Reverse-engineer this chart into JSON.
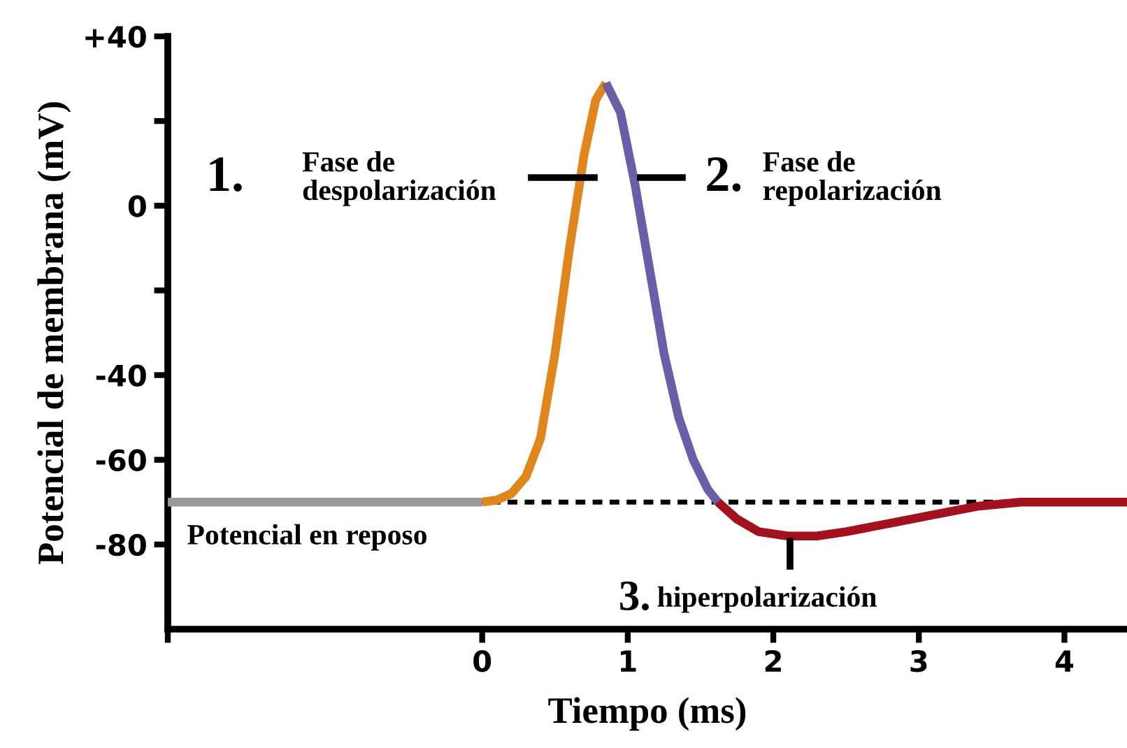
{
  "chart_data": {
    "type": "line",
    "xlabel": "Tiempo (ms)",
    "ylabel": "Potencial de membrana (mV)",
    "xlim": [
      -2.16,
      4.43
    ],
    "ylim": [
      -100,
      40
    ],
    "xticks": [
      {
        "value": -2.16,
        "label": null
      },
      0,
      1,
      2,
      3,
      4
    ],
    "yticks": [
      {
        "value": 40,
        "label": "+40"
      },
      {
        "value": 20,
        "label": null
      },
      0,
      {
        "value": -20,
        "label": null
      },
      -40,
      -60,
      -80
    ],
    "grid": false,
    "legend": false,
    "marker": "none",
    "line_style": "solid",
    "series": [
      {
        "color": "#9a9a9a",
        "x": [
          -2.16,
          0
        ],
        "values": [
          -70,
          -70
        ]
      },
      {
        "color": "#e0861c",
        "x": [
          0,
          0.1,
          0.2,
          0.3,
          0.4,
          0.5,
          0.6,
          0.7,
          0.78,
          0.85
        ],
        "values": [
          -70,
          -69.5,
          -68,
          -64,
          -55,
          -35,
          -10,
          12,
          25,
          29
        ]
      },
      {
        "color": "#6a5ea8",
        "x": [
          0.85,
          0.95,
          1.05,
          1.15,
          1.25,
          1.35,
          1.45,
          1.55,
          1.62
        ],
        "values": [
          29,
          22,
          5,
          -15,
          -35,
          -50,
          -60,
          -67,
          -70
        ]
      },
      {
        "color": "#a3101e",
        "x": [
          1.62,
          1.75,
          1.9,
          2.1,
          2.3,
          2.5,
          2.8,
          3.1,
          3.4,
          3.7,
          4.43
        ],
        "values": [
          -70,
          -74,
          -77,
          -78,
          -78,
          -77,
          -75,
          -73,
          -71,
          -70,
          -70
        ]
      }
    ],
    "ref_lines": [
      {
        "axis": "y",
        "value": -70,
        "label": null,
        "color": "#000000",
        "line_style": "dotted"
      }
    ],
    "annotations": [
      "1.",
      "Fase de\ndespolarización",
      "2.",
      "Fase de\nrepolarización",
      "Potencial en reposo",
      "3.",
      "hiperpolarización"
    ]
  }
}
